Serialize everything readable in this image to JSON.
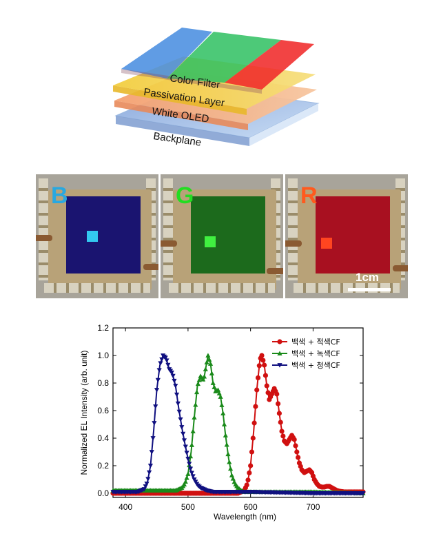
{
  "diagram": {
    "layers": [
      {
        "label": "Color Filter"
      },
      {
        "label": "Passivation Layer"
      },
      {
        "label": "White OLED"
      },
      {
        "label": "Backplane"
      }
    ]
  },
  "photos": [
    {
      "letter": "B",
      "letter_color": "#29a8e0",
      "active_color": "#1a1470",
      "pixel_color": "#33c8f0"
    },
    {
      "letter": "G",
      "letter_color": "#22dd22",
      "active_color": "#1c6a1c",
      "pixel_color": "#40f040"
    },
    {
      "letter": "R",
      "letter_color": "#ff5a1e",
      "active_color": "#a81020",
      "pixel_color": "#ff4520"
    }
  ],
  "scale_bar": {
    "label": "1cm"
  },
  "chart_data": {
    "type": "line",
    "xlabel": "Wavelength (nm)",
    "ylabel": "Normalized EL Intensity (arb. unit)",
    "xlim": [
      380,
      780
    ],
    "ylim": [
      -0.03,
      1.2
    ],
    "xticks": [
      400,
      500,
      600,
      700
    ],
    "yticks": [
      "0.0",
      "0.2",
      "0.4",
      "0.6",
      "0.8",
      "1.0",
      "1.2"
    ],
    "legend_position": "top-right",
    "series": [
      {
        "name": "백색 + 적색CF",
        "color": "#d01010",
        "marker": "circle",
        "x": [
          380,
          560,
          580,
          590,
          595,
          600,
          605,
          610,
          615,
          618,
          622,
          626,
          630,
          634,
          638,
          642,
          646,
          650,
          654,
          658,
          662,
          666,
          670,
          674,
          678,
          682,
          686,
          690,
          694,
          698,
          702,
          706,
          710,
          714,
          718,
          722,
          726,
          730,
          734,
          738,
          742,
          750,
          760,
          780
        ],
        "y": [
          0.0,
          0.0,
          0.0,
          0.02,
          0.07,
          0.2,
          0.45,
          0.75,
          0.97,
          1.0,
          0.93,
          0.78,
          0.68,
          0.72,
          0.76,
          0.72,
          0.58,
          0.45,
          0.38,
          0.36,
          0.39,
          0.42,
          0.39,
          0.3,
          0.22,
          0.17,
          0.15,
          0.16,
          0.17,
          0.15,
          0.1,
          0.07,
          0.05,
          0.045,
          0.045,
          0.05,
          0.05,
          0.04,
          0.03,
          0.02,
          0.015,
          0.01,
          0.01,
          0.01
        ]
      },
      {
        "name": "백색 + 녹색CF",
        "color": "#1a8a1a",
        "marker": "triangle-up",
        "x": [
          380,
          460,
          480,
          490,
          495,
          500,
          505,
          510,
          515,
          520,
          525,
          528,
          532,
          536,
          540,
          544,
          548,
          552,
          556,
          560,
          565,
          570,
          575,
          580,
          585,
          590,
          600,
          620,
          650,
          700,
          780
        ],
        "y": [
          0.02,
          0.02,
          0.02,
          0.04,
          0.07,
          0.14,
          0.3,
          0.55,
          0.78,
          0.85,
          0.82,
          0.9,
          1.0,
          0.94,
          0.8,
          0.74,
          0.75,
          0.7,
          0.58,
          0.42,
          0.25,
          0.13,
          0.07,
          0.04,
          0.02,
          0.01,
          0.01,
          0.01,
          0.01,
          0.01,
          0.0
        ]
      },
      {
        "name": "백색 + 청색CF",
        "color": "#101080",
        "marker": "triangle-down",
        "x": [
          380,
          420,
          430,
          435,
          440,
          445,
          450,
          455,
          460,
          465,
          470,
          475,
          480,
          485,
          490,
          495,
          500,
          505,
          510,
          515,
          520,
          530,
          540,
          550,
          600,
          700,
          780
        ],
        "y": [
          0.01,
          0.01,
          0.03,
          0.08,
          0.2,
          0.45,
          0.75,
          0.93,
          1.0,
          0.98,
          0.9,
          0.87,
          0.78,
          0.62,
          0.48,
          0.36,
          0.25,
          0.16,
          0.1,
          0.06,
          0.04,
          0.02,
          0.01,
          0.01,
          0.01,
          0.0,
          0.0
        ]
      }
    ]
  }
}
